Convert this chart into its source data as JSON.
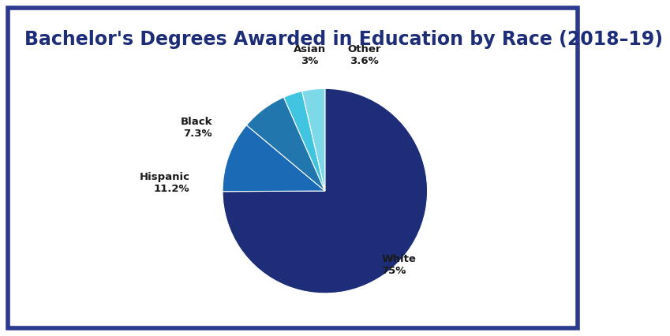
{
  "title": "Bachelor's Degrees Awarded in Education by Race (2018–19)",
  "slices": [
    {
      "label": "White",
      "value": 75.0,
      "color": "#1e2d78"
    },
    {
      "label": "Hispanic",
      "value": 11.2,
      "color": "#1a6ab5"
    },
    {
      "label": "Black",
      "value": 7.3,
      "color": "#2176ae"
    },
    {
      "label": "Asian",
      "value": 3.0,
      "color": "#40c4e0"
    },
    {
      "label": "Other",
      "value": 3.6,
      "color": "#7dd8e8"
    }
  ],
  "title_color": "#1e2d78",
  "title_fontsize": 17,
  "bg_color": "#ffffff",
  "border_color": "#2b3a8f",
  "border_linewidth": 4,
  "label_color": "#1a1a1a",
  "label_fontsize": 9.5
}
